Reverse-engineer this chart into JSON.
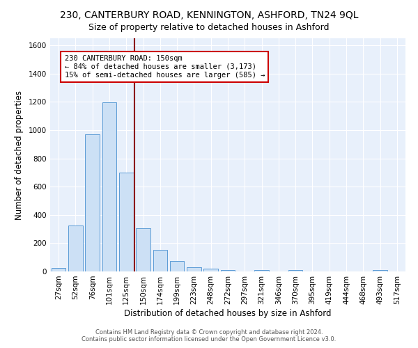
{
  "title": "230, CANTERBURY ROAD, KENNINGTON, ASHFORD, TN24 9QL",
  "subtitle": "Size of property relative to detached houses in Ashford",
  "xlabel": "Distribution of detached houses by size in Ashford",
  "ylabel": "Number of detached properties",
  "bar_labels": [
    "27sqm",
    "52sqm",
    "76sqm",
    "101sqm",
    "125sqm",
    "150sqm",
    "174sqm",
    "199sqm",
    "223sqm",
    "248sqm",
    "272sqm",
    "297sqm",
    "321sqm",
    "346sqm",
    "370sqm",
    "395sqm",
    "419sqm",
    "444sqm",
    "468sqm",
    "493sqm",
    "517sqm"
  ],
  "bar_values": [
    25,
    325,
    970,
    1195,
    700,
    305,
    155,
    75,
    30,
    20,
    12,
    0,
    12,
    0,
    12,
    0,
    0,
    0,
    0,
    12,
    0
  ],
  "bar_color": "#cce0f5",
  "bar_edge_color": "#5b9bd5",
  "vline_color": "#8b0000",
  "annotation_text": "230 CANTERBURY ROAD: 150sqm\n← 84% of detached houses are smaller (3,173)\n15% of semi-detached houses are larger (585) →",
  "annotation_box_color": "white",
  "annotation_box_edge": "#cc0000",
  "ylim": [
    0,
    1650
  ],
  "yticks": [
    0,
    200,
    400,
    600,
    800,
    1000,
    1200,
    1400,
    1600
  ],
  "footer1": "Contains HM Land Registry data © Crown copyright and database right 2024.",
  "footer2": "Contains public sector information licensed under the Open Government Licence v3.0.",
  "bg_color": "#e8f0fb",
  "fig_bg": "#ffffff",
  "title_fontsize": 10,
  "subtitle_fontsize": 9,
  "axis_label_fontsize": 8.5,
  "tick_fontsize": 7.5,
  "footer_fontsize": 6
}
